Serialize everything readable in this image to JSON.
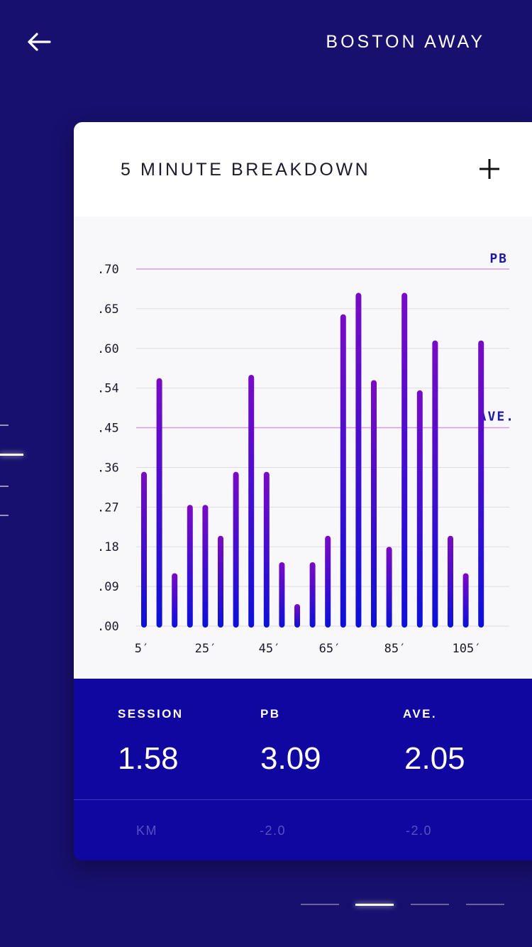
{
  "header": {
    "title": "BOSTON AWAY",
    "back_icon": "arrow-left-icon"
  },
  "card": {
    "title": "5 MINUTE BREAKDOWN",
    "add_icon": "plus-icon"
  },
  "colors": {
    "background": "#17106e",
    "stats_panel": "#1006a0",
    "bar_top": "#7a0bc4",
    "bar_bottom": "#0c10d8",
    "reference_line": "#d79ae0",
    "reference_label": "#1e1aa6"
  },
  "chart_data": {
    "type": "bar",
    "y_tick_labels": [
      ".00",
      ".09",
      ".18",
      ".27",
      ".36",
      ".45",
      ".54",
      ".60",
      ".65",
      ".70"
    ],
    "x_tick_labels": [
      "5′",
      "25′",
      "45′",
      "65′",
      "85′",
      "105′"
    ],
    "reference_lines": [
      {
        "label": "PB",
        "tick_index": 9
      },
      {
        "label": "AVE.",
        "tick_index": 5
      }
    ],
    "values": [
      0.35,
      0.555,
      0.12,
      0.275,
      0.275,
      0.205,
      0.35,
      0.56,
      0.35,
      0.145,
      0.05,
      0.145,
      0.205,
      0.643,
      0.67,
      0.552,
      0.18,
      0.67,
      0.535,
      0.61,
      0.205,
      0.12,
      0.61
    ],
    "grid": true
  },
  "stats": {
    "items": [
      {
        "label": "SESSION",
        "value": "1.58",
        "sub": "KM"
      },
      {
        "label": "PB",
        "value": "3.09",
        "sub": "-2.0"
      },
      {
        "label": "AVE.",
        "value": "2.05",
        "sub": "-2.0"
      }
    ]
  },
  "pager": {
    "count": 4,
    "active_index": 1
  },
  "side_indicator": {
    "count": 4,
    "active_index": 1
  }
}
